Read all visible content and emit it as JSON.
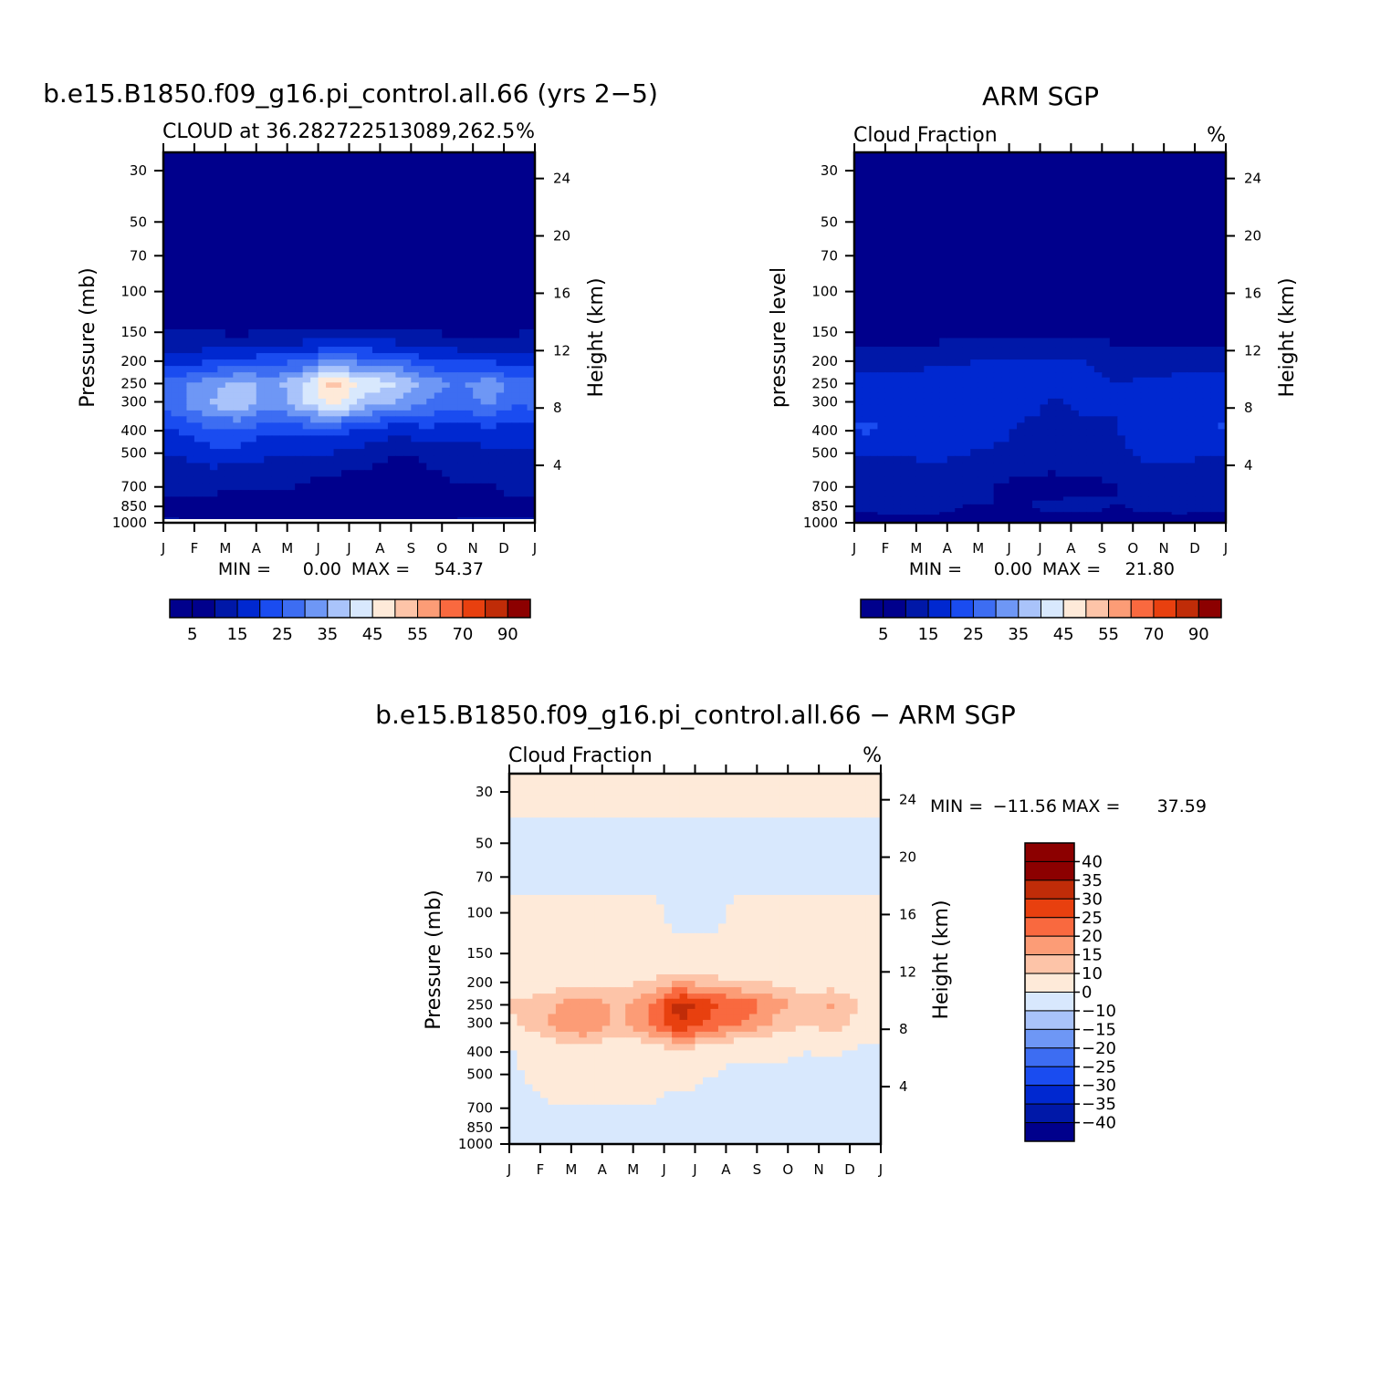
{
  "colors": {
    "levels15": [
      "#00008c",
      "#0018a8",
      "#0028d0",
      "#1a4cf0",
      "#3d6df2",
      "#6e97f5",
      "#a9c3fa",
      "#d8e8fd",
      "#feead9",
      "#fdc4a8",
      "#fc9c76",
      "#f9693f",
      "#e8400f",
      "#c02c08",
      "#8c0000"
    ],
    "diff15": [
      "#00008c",
      "#0018a8",
      "#0028d0",
      "#1a4cf0",
      "#3d6df2",
      "#6e97f5",
      "#a9c3fa",
      "#d8e8fd",
      "#feead9",
      "#fdc4a8",
      "#fc9c76",
      "#f9693f",
      "#e8400f",
      "#c02c08",
      "#8c0000"
    ]
  },
  "panels": [
    {
      "id": "model",
      "main_title": "b.e15.B1850.f09_g16.pi_control.all.66 (yrs 2−5)",
      "left_string": "CLOUD at 36.282722513089,262.5",
      "right_string": "%",
      "y_left_label": "Pressure (mb)",
      "y_right_label": "Height (km)",
      "min_label": "MIN =",
      "min_value": "0.00",
      "max_label": "MAX =",
      "max_value": "54.37",
      "colorbar_labels": [
        "5",
        "15",
        "25",
        "35",
        "45",
        "55",
        "70",
        "90"
      ]
    },
    {
      "id": "obs",
      "main_title": "ARM SGP",
      "left_string": "Cloud Fraction",
      "right_string": "%",
      "y_left_label": "pressure level",
      "y_right_label": "Height (km)",
      "min_label": "MIN =",
      "min_value": "0.00",
      "max_label": "MAX =",
      "max_value": "21.80",
      "colorbar_labels": [
        "5",
        "15",
        "25",
        "35",
        "45",
        "55",
        "70",
        "90"
      ]
    },
    {
      "id": "diff",
      "main_title": "b.e15.B1850.f09_g16.pi_control.all.66 − ARM SGP",
      "left_string": "Cloud Fraction",
      "right_string": "%",
      "y_left_label": "Pressure (mb)",
      "y_right_label": "Height (km)",
      "min_label": "MIN =",
      "min_value": "−11.56",
      "max_label": "MAX =",
      "max_value": "37.59",
      "colorbar_labels": [
        "40",
        "35",
        "30",
        "25",
        "20",
        "15",
        "10",
        "0",
        "−10",
        "−15",
        "−20",
        "−25",
        "−30",
        "−35",
        "−40"
      ]
    }
  ],
  "chart_data": [
    {
      "type": "heatmap",
      "title": "b.e15.B1850.f09_g16.pi_control.all.66 (yrs 2−5)",
      "subtitle": "CLOUD at 36.282722513089,262.5",
      "units": "%",
      "xlabel": "",
      "ylabel": "Pressure (mb)",
      "ylabel_right": "Height (km)",
      "x_ticks": [
        "J",
        "F",
        "M",
        "A",
        "M",
        "J",
        "J",
        "A",
        "S",
        "O",
        "N",
        "D",
        "J"
      ],
      "y_ticks_pressure": [
        30,
        50,
        70,
        100,
        150,
        200,
        250,
        300,
        400,
        500,
        700,
        850,
        1000
      ],
      "y_ticks_height": [
        24,
        20,
        16,
        12,
        8,
        4
      ],
      "y_scale": "log",
      "contour_levels": [
        0,
        5,
        10,
        15,
        20,
        25,
        30,
        35,
        40,
        45,
        50,
        55,
        60,
        70,
        80,
        90
      ],
      "min": 0.0,
      "max": 54.37,
      "months": [
        "J",
        "F",
        "M",
        "A",
        "M",
        "J",
        "J",
        "A",
        "S",
        "O",
        "N",
        "D"
      ],
      "pressure_levels": [
        30,
        50,
        70,
        100,
        150,
        200,
        250,
        300,
        400,
        500,
        700,
        850,
        950
      ],
      "values": [
        [
          1,
          1,
          1,
          1,
          1,
          1,
          1,
          1,
          1,
          1,
          1,
          1
        ],
        [
          1,
          1,
          1,
          1,
          1,
          1,
          1,
          1,
          1,
          1,
          1,
          1
        ],
        [
          1,
          1,
          1,
          1,
          1,
          1,
          1,
          1,
          1,
          1,
          1,
          1
        ],
        [
          2,
          2,
          2,
          2,
          2,
          2,
          2,
          2,
          2,
          2,
          2,
          2
        ],
        [
          4,
          4,
          3,
          4,
          4,
          4,
          4,
          4,
          4,
          3,
          3,
          4
        ],
        [
          12,
          14,
          16,
          17,
          20,
          24,
          22,
          20,
          16,
          14,
          14,
          12
        ],
        [
          24,
          28,
          32,
          28,
          34,
          48,
          38,
          36,
          28,
          24,
          28,
          22
        ],
        [
          24,
          30,
          34,
          26,
          34,
          42,
          32,
          30,
          24,
          22,
          26,
          20
        ],
        [
          16,
          20,
          20,
          16,
          18,
          18,
          14,
          12,
          14,
          12,
          14,
          12
        ],
        [
          10,
          12,
          12,
          10,
          10,
          9,
          8,
          4,
          6,
          8,
          8,
          9
        ],
        [
          6,
          7,
          6,
          6,
          5,
          3,
          2,
          2,
          3,
          5,
          5,
          6
        ],
        [
          4,
          2,
          2,
          3,
          4,
          2,
          1,
          1,
          1,
          4,
          4,
          4
        ],
        [
          5,
          3,
          3,
          4,
          5,
          4,
          3,
          3,
          3,
          5,
          5,
          5
        ]
      ]
    },
    {
      "type": "heatmap",
      "title": "ARM SGP",
      "subtitle": "Cloud Fraction",
      "units": "%",
      "xlabel": "",
      "ylabel": "pressure level",
      "ylabel_right": "Height (km)",
      "x_ticks": [
        "J",
        "F",
        "M",
        "A",
        "M",
        "J",
        "J",
        "A",
        "S",
        "O",
        "N",
        "D",
        "J"
      ],
      "y_ticks_pressure": [
        30,
        50,
        70,
        100,
        150,
        200,
        250,
        300,
        400,
        500,
        700,
        850,
        1000
      ],
      "y_ticks_height": [
        24,
        20,
        16,
        12,
        8,
        4
      ],
      "y_scale": "log",
      "contour_levels": [
        0,
        5,
        10,
        15,
        20,
        25,
        30,
        35,
        40,
        45,
        50,
        55,
        60,
        70,
        80,
        90
      ],
      "min": 0.0,
      "max": 21.8,
      "months": [
        "J",
        "F",
        "M",
        "A",
        "M",
        "J",
        "J",
        "A",
        "S",
        "O",
        "N",
        "D"
      ],
      "pressure_levels": [
        30,
        50,
        70,
        100,
        150,
        200,
        250,
        300,
        400,
        500,
        700,
        850,
        950
      ],
      "values": [
        [
          1,
          1,
          1,
          1,
          1,
          1,
          1,
          1,
          1,
          1,
          1,
          1
        ],
        [
          1,
          1,
          1,
          1,
          1,
          1,
          1,
          1,
          1,
          1,
          1,
          1
        ],
        [
          1,
          1,
          1,
          1,
          1,
          1,
          1,
          1,
          1,
          1,
          1,
          1
        ],
        [
          1,
          1,
          1,
          1,
          1,
          1,
          1,
          1,
          1,
          1,
          1,
          1
        ],
        [
          3,
          3,
          3,
          3,
          3,
          4,
          4,
          4,
          3,
          3,
          3,
          3
        ],
        [
          8,
          7,
          8,
          9,
          10,
          10,
          10,
          10,
          7,
          7,
          7,
          8
        ],
        [
          12,
          13,
          14,
          14,
          15,
          15,
          12,
          12,
          10,
          11,
          12,
          13
        ],
        [
          13,
          14,
          14,
          13,
          14,
          12,
          9,
          11,
          10,
          12,
          13,
          14
        ],
        [
          16,
          13,
          12,
          12,
          12,
          9,
          8,
          9,
          10,
          12,
          12,
          15
        ],
        [
          10,
          10,
          11,
          10,
          9,
          8,
          8,
          9,
          9,
          11,
          11,
          10
        ],
        [
          8,
          7,
          6,
          6,
          5,
          4,
          3,
          4,
          5,
          6,
          7,
          7
        ],
        [
          6,
          9,
          7,
          5,
          5,
          5,
          6,
          6,
          5,
          6,
          7,
          6
        ],
        [
          4,
          4,
          4,
          4,
          4,
          4,
          4,
          4,
          4,
          4,
          4,
          4
        ]
      ]
    },
    {
      "type": "heatmap",
      "title": "b.e15.B1850.f09_g16.pi_control.all.66 − ARM SGP",
      "subtitle": "Cloud Fraction",
      "units": "%",
      "xlabel": "",
      "ylabel": "Pressure (mb)",
      "ylabel_right": "Height (km)",
      "x_ticks": [
        "J",
        "F",
        "M",
        "A",
        "M",
        "J",
        "J",
        "A",
        "S",
        "O",
        "N",
        "D",
        "J"
      ],
      "y_ticks_pressure": [
        30,
        50,
        70,
        100,
        150,
        200,
        250,
        300,
        400,
        500,
        700,
        850,
        1000
      ],
      "y_ticks_height": [
        24,
        20,
        16,
        12,
        8,
        4
      ],
      "y_scale": "log",
      "contour_levels": [
        -40,
        -35,
        -30,
        -25,
        -20,
        -15,
        -10,
        0,
        10,
        15,
        20,
        25,
        30,
        35,
        40
      ],
      "min": -11.56,
      "max": 37.59,
      "months": [
        "J",
        "F",
        "M",
        "A",
        "M",
        "J",
        "J",
        "A",
        "S",
        "O",
        "N",
        "D"
      ],
      "pressure_levels": [
        30,
        50,
        70,
        100,
        150,
        200,
        250,
        300,
        400,
        500,
        700,
        850,
        950
      ],
      "values": [
        [
          1,
          1,
          1,
          1,
          1,
          1,
          1,
          1,
          1,
          1,
          1,
          1
        ],
        [
          -1,
          -1,
          -1,
          -1,
          -1,
          -1,
          -1,
          -1,
          -1,
          -1,
          -1,
          -1
        ],
        [
          -1,
          -1,
          -1,
          -1,
          -1,
          -1,
          -1,
          -1,
          -1,
          -1,
          -1,
          -1
        ],
        [
          1,
          1,
          1,
          1,
          1,
          -1,
          -1,
          1,
          1,
          1,
          1,
          1
        ],
        [
          1,
          1,
          1,
          1,
          1,
          1,
          1,
          1,
          1,
          1,
          1,
          1
        ],
        [
          4,
          7,
          8,
          8,
          10,
          14,
          12,
          10,
          9,
          7,
          7,
          4
        ],
        [
          12,
          15,
          18,
          14,
          19,
          33,
          26,
          24,
          18,
          13,
          16,
          9
        ],
        [
          11,
          16,
          20,
          13,
          20,
          30,
          23,
          19,
          14,
          10,
          13,
          6
        ],
        [
          1,
          7,
          8,
          4,
          6,
          9,
          6,
          3,
          4,
          0,
          2,
          -3
        ],
        [
          0,
          2,
          1,
          0,
          1,
          1,
          0,
          -5,
          -3,
          -3,
          -3,
          -1
        ],
        [
          -2,
          0,
          0,
          0,
          0,
          -1,
          -1,
          -2,
          -2,
          -1,
          -2,
          -1
        ],
        [
          -2,
          -7,
          -5,
          -2,
          -1,
          -3,
          -5,
          -5,
          -4,
          -2,
          -3,
          -2
        ],
        [
          -1,
          -1,
          -1,
          -1,
          -1,
          -1,
          -1,
          -1,
          -1,
          -1,
          -1,
          -1
        ]
      ]
    }
  ]
}
